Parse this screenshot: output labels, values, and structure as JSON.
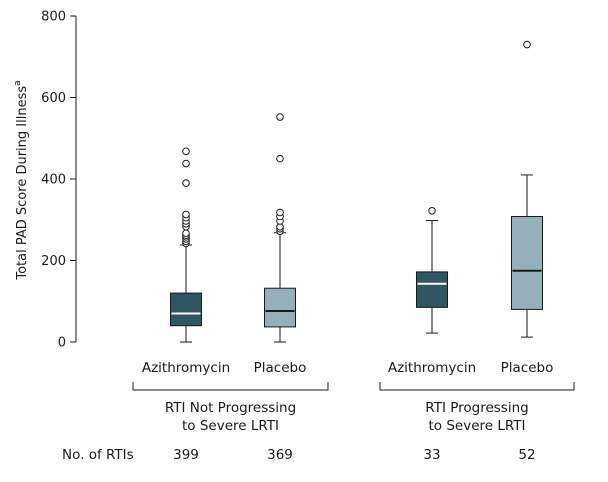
{
  "chart_data": {
    "type": "box",
    "ylabel": "Total PAD Score During Illness",
    "ylabel_superscript": "a",
    "ylim": [
      0,
      800
    ],
    "yticks": [
      0,
      200,
      400,
      600,
      800
    ],
    "grid": false,
    "colors": {
      "azithromycin": "#2e5563",
      "placebo": "#93b0bb",
      "azithromycin_median": "#ffffff",
      "placebo_median": "#1a1a1a"
    },
    "groups": [
      {
        "label_line1": "RTI Not Progressing",
        "label_line2": "to Severe LRTI"
      },
      {
        "label_line1": "RTI Progressing",
        "label_line2": "to Severe LRTI"
      }
    ],
    "count_header": "No. of RTIs",
    "boxes": [
      {
        "label": "Azithromycin",
        "treatment": "azithromycin",
        "group": 0,
        "count": "399",
        "whisker_low": 0,
        "q1": 40,
        "median": 70,
        "q3": 120,
        "whisker_high": 238,
        "outliers": [
          242,
          247,
          253,
          258,
          262,
          267,
          283,
          290,
          297,
          305,
          313,
          390,
          438,
          468
        ]
      },
      {
        "label": "Placebo",
        "treatment": "placebo",
        "group": 0,
        "count": "369",
        "whisker_low": 0,
        "q1": 37,
        "median": 76,
        "q3": 132,
        "whisker_high": 268,
        "outliers": [
          272,
          278,
          283,
          297,
          308,
          318,
          450,
          552
        ]
      },
      {
        "label": "Azithromycin",
        "treatment": "azithromycin",
        "group": 1,
        "count": "33",
        "whisker_low": 22,
        "q1": 85,
        "median": 143,
        "q3": 172,
        "whisker_high": 298,
        "outliers": [
          322
        ]
      },
      {
        "label": "Placebo",
        "treatment": "placebo",
        "group": 1,
        "count": "52",
        "whisker_low": 12,
        "q1": 80,
        "median": 175,
        "q3": 308,
        "whisker_high": 410,
        "outliers": [
          730
        ]
      }
    ]
  }
}
